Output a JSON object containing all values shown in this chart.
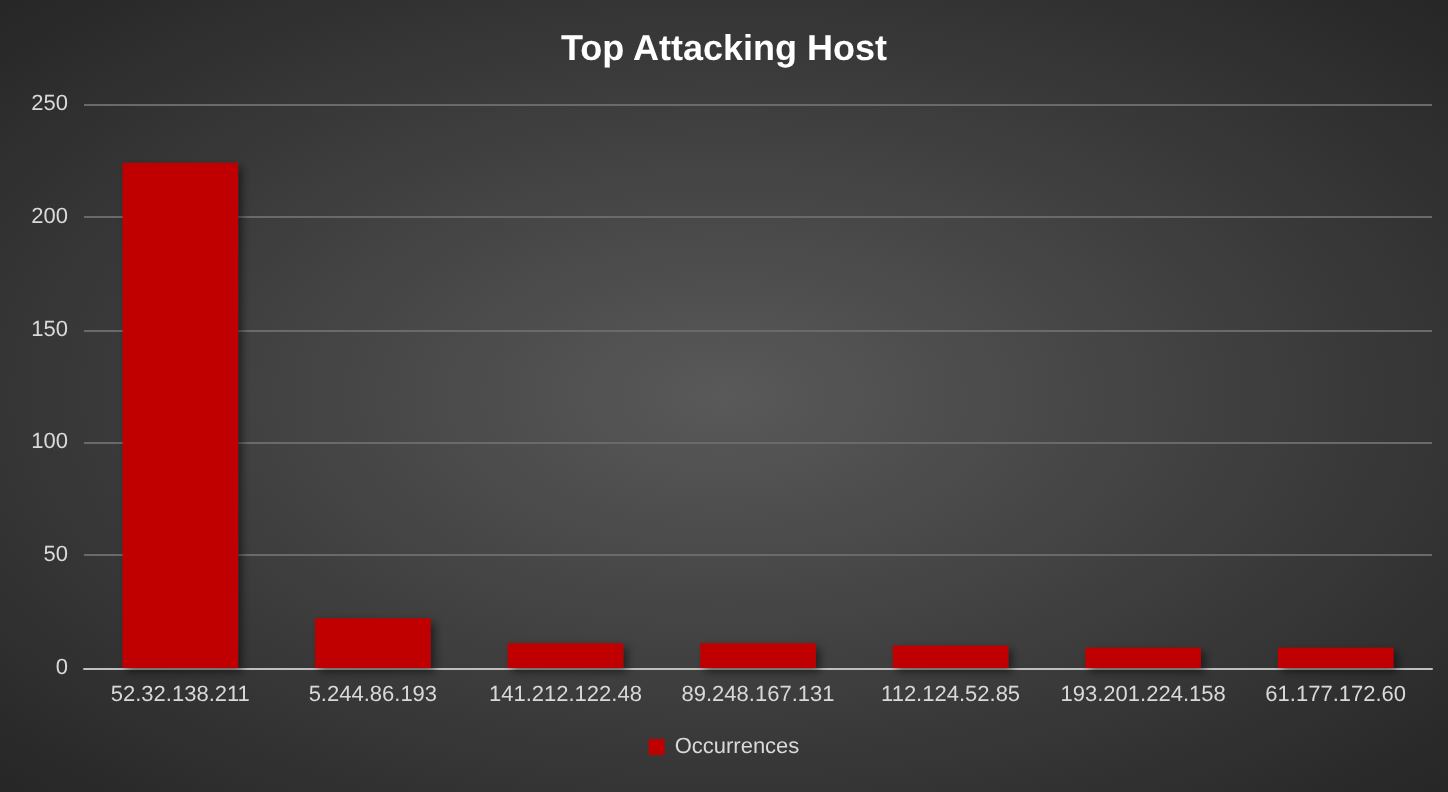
{
  "chart_data": {
    "type": "bar",
    "title": "Top Attacking Host",
    "categories": [
      "52.32.138.211",
      "5.244.86.193",
      "141.212.122.48",
      "89.248.167.131",
      "112.124.52.85",
      "193.201.224.158",
      "61.177.172.60"
    ],
    "series": [
      {
        "name": "Occurrences",
        "color": "#c00000",
        "values": [
          224,
          22,
          11,
          11,
          10,
          9,
          9
        ]
      }
    ],
    "ylim": [
      0,
      250
    ],
    "yticks": [
      0,
      50,
      100,
      150,
      200,
      250
    ],
    "grid": "y",
    "legend": "bottom"
  }
}
